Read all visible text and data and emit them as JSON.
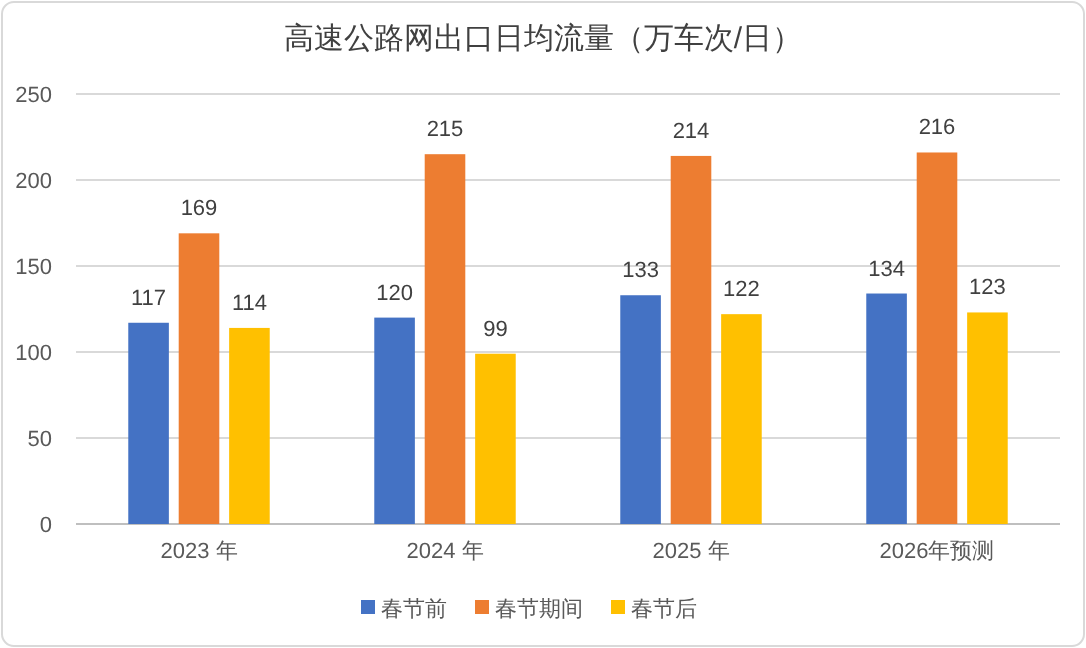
{
  "chart_data": {
    "type": "bar",
    "title": "高速公路网出口日均流量（万车次/日）",
    "categories": [
      "2023 年",
      "2024 年",
      "2025 年",
      "2026年预测"
    ],
    "series": [
      {
        "name": "春节前",
        "color": "#4472c4",
        "values": [
          117,
          120,
          133,
          134
        ]
      },
      {
        "name": "春节期间",
        "color": "#ed7d31",
        "values": [
          169,
          215,
          214,
          216
        ]
      },
      {
        "name": "春节后",
        "color": "#ffc000",
        "values": [
          114,
          99,
          122,
          123
        ]
      }
    ],
    "ylim": [
      0,
      250
    ],
    "yticks": [
      0,
      50,
      100,
      150,
      200,
      250
    ],
    "grid": "y",
    "data_labels": true,
    "legend": "bottom"
  }
}
